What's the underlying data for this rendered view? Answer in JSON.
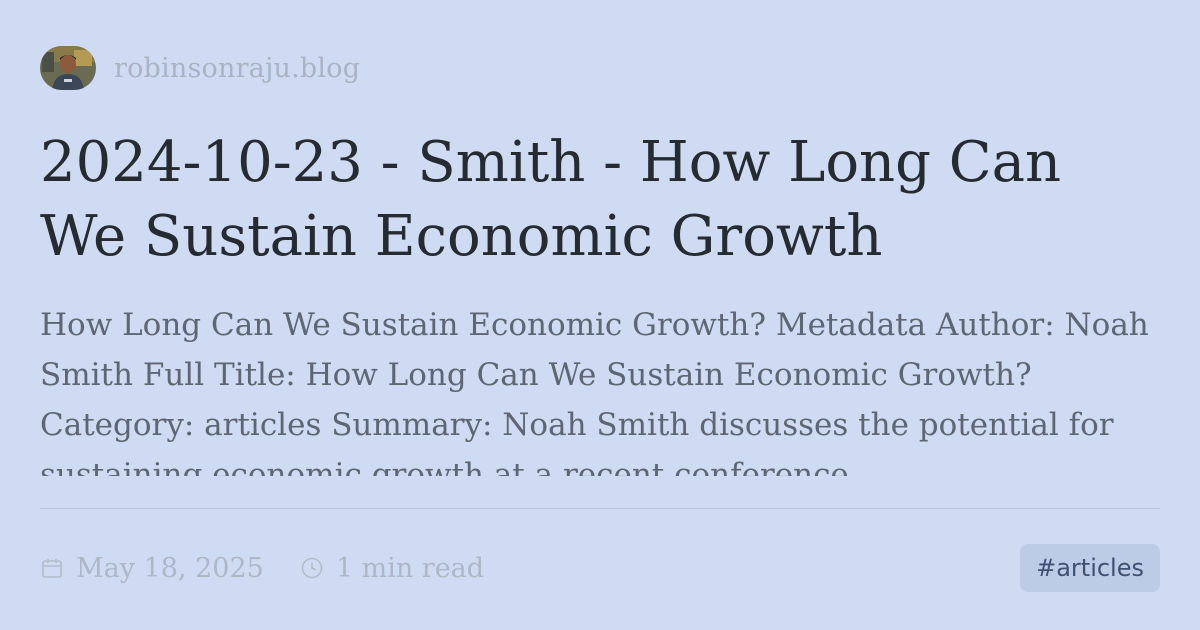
{
  "site": {
    "name": "robinsonraju.blog",
    "avatar_icon": "author-avatar"
  },
  "post": {
    "title": "2024-10-23 - Smith - How Long Can We Sustain Economic Growth",
    "excerpt": "How Long Can We Sustain Economic Growth? Metadata Author: Noah Smith Full Title: How Long Can We Sustain Economic Growth? Category: articles Summary: Noah Smith discusses the potential for sustaining economic growth at a recent conference"
  },
  "meta": {
    "date": "May 18, 2025",
    "date_icon": "calendar-icon",
    "read_time": "1 min read",
    "read_time_icon": "clock-icon",
    "tag": "#articles"
  },
  "colors": {
    "background": "#cfdbf2",
    "title": "#262b31",
    "excerpt": "#5d6673",
    "muted": "#aeb7c7",
    "tag_bg": "#bccbe6",
    "tag_text": "#3f5170"
  }
}
